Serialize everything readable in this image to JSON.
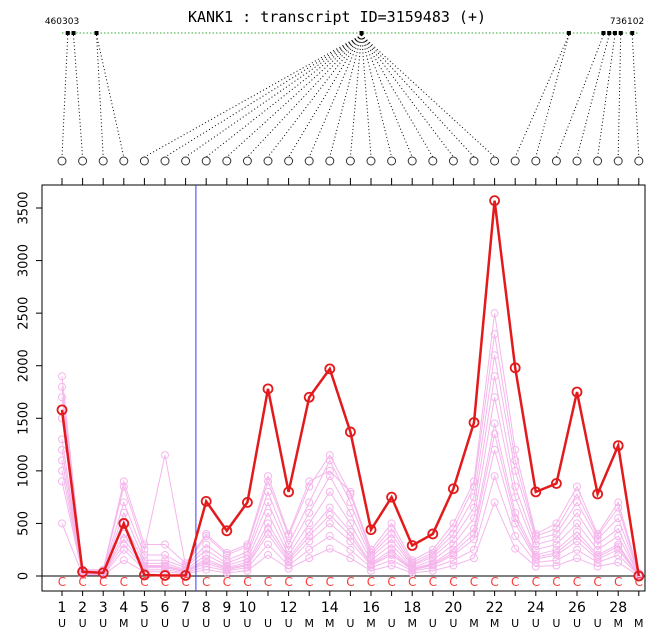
{
  "header": {
    "title": "KANK1 : transcript  ID=3159483 (+)",
    "start_coord": "460303",
    "end_coord": "736102"
  },
  "colors": {
    "highlight": "#e31a1c",
    "background_lines": "#f5b6ec",
    "marker_line": "#3a3aff",
    "genome_line": "#33aa33"
  },
  "chart_data": {
    "type": "line",
    "title": "KANK1 : transcript  ID=3159483 (+)",
    "ylim": [
      -120,
      3650
    ],
    "yticks": [
      0,
      500,
      1000,
      1500,
      2000,
      2500,
      3000,
      3500
    ],
    "x": [
      1,
      2,
      3,
      4,
      5,
      6,
      7,
      8,
      9,
      10,
      11,
      12,
      13,
      14,
      15,
      16,
      17,
      18,
      19,
      20,
      21,
      22,
      23,
      24,
      25,
      26,
      27,
      28,
      29
    ],
    "x_tick_labels": [
      "1",
      "2",
      "3",
      "4",
      "5",
      "6",
      "7",
      "8",
      "9",
      "10",
      "12",
      "14",
      "16",
      "18",
      "20",
      "22",
      "24",
      "26",
      "28"
    ],
    "x_tick_label_positions": [
      1,
      2,
      3,
      4,
      5,
      6,
      7,
      8,
      9,
      10,
      12,
      14,
      16,
      18,
      20,
      22,
      24,
      26,
      28
    ],
    "probe_types": [
      "U",
      "U",
      "U",
      "M",
      "U",
      "U",
      "U",
      "U",
      "U",
      "U",
      "U",
      "U",
      "M",
      "M",
      "U",
      "M",
      "U",
      "M",
      "U",
      "U",
      "M",
      "M",
      "U",
      "U",
      "U",
      "U",
      "U",
      "M",
      "M"
    ],
    "c_labels": [
      "C",
      "C",
      "C",
      "C",
      "C",
      "C",
      "C",
      "C",
      "C",
      "C",
      "C",
      "C",
      "C",
      "C",
      "C",
      "C",
      "C",
      "C",
      "C",
      "C",
      "C",
      "C",
      "C",
      "C",
      "C",
      "C",
      "C",
      "C",
      "C"
    ],
    "exon_genomic_fraction": [
      0.01,
      0.02,
      0.06,
      0.06,
      0.52,
      0.52,
      0.52,
      0.52,
      0.52,
      0.52,
      0.52,
      0.52,
      0.52,
      0.52,
      0.52,
      0.52,
      0.52,
      0.52,
      0.52,
      0.52,
      0.52,
      0.52,
      0.88,
      0.88,
      0.94,
      0.95,
      0.96,
      0.97,
      0.99
    ],
    "vertical_marker_x": 7.5,
    "series": [
      {
        "values": [
          1580,
          40,
          30,
          500,
          10,
          5,
          5,
          710,
          430,
          700,
          1780,
          800,
          1700,
          1970,
          1370,
          440,
          750,
          290,
          400,
          830,
          1460,
          3570,
          1980,
          800,
          880,
          1750,
          780,
          1240,
          0
        ]
      }
    ],
    "background_series": [
      [
        1900,
        60,
        60,
        900,
        300,
        300,
        120,
        400,
        220,
        300,
        950,
        400,
        900,
        1000,
        800,
        250,
        500,
        150,
        250,
        500,
        900,
        2500,
        1200,
        400,
        500,
        850,
        400,
        700,
        30
      ],
      [
        1800,
        50,
        50,
        850,
        250,
        1150,
        100,
        380,
        200,
        280,
        900,
        380,
        850,
        1150,
        780,
        220,
        450,
        130,
        220,
        450,
        850,
        2300,
        1100,
        380,
        450,
        780,
        380,
        650,
        20
      ],
      [
        1700,
        40,
        40,
        700,
        200,
        200,
        90,
        300,
        150,
        230,
        800,
        300,
        700,
        1100,
        700,
        200,
        400,
        110,
        200,
        400,
        750,
        2100,
        1000,
        350,
        400,
        700,
        350,
        550,
        20
      ],
      [
        1500,
        30,
        30,
        600,
        150,
        150,
        80,
        250,
        120,
        200,
        700,
        250,
        600,
        950,
        600,
        180,
        350,
        100,
        180,
        350,
        650,
        1900,
        850,
        300,
        350,
        600,
        300,
        450,
        10
      ],
      [
        1300,
        25,
        25,
        500,
        120,
        120,
        60,
        200,
        100,
        160,
        600,
        200,
        500,
        800,
        500,
        150,
        300,
        80,
        150,
        300,
        550,
        1700,
        750,
        250,
        300,
        500,
        250,
        380,
        10
      ],
      [
        1100,
        20,
        20,
        400,
        100,
        100,
        50,
        160,
        80,
        130,
        500,
        170,
        420,
        650,
        420,
        120,
        250,
        70,
        120,
        250,
        450,
        1450,
        600,
        200,
        250,
        420,
        200,
        300,
        5
      ],
      [
        1000,
        15,
        15,
        300,
        80,
        80,
        40,
        120,
        60,
        100,
        400,
        130,
        330,
        500,
        330,
        100,
        200,
        60,
        100,
        200,
        350,
        1200,
        500,
        160,
        200,
        330,
        160,
        250,
        5
      ],
      [
        900,
        10,
        10,
        250,
        60,
        60,
        30,
        90,
        50,
        80,
        300,
        100,
        250,
        380,
        250,
        80,
        150,
        50,
        80,
        150,
        250,
        950,
        380,
        130,
        150,
        250,
        130,
        200,
        5
      ],
      [
        500,
        10,
        10,
        150,
        40,
        40,
        20,
        60,
        30,
        50,
        200,
        70,
        170,
        260,
        170,
        50,
        100,
        30,
        50,
        100,
        170,
        700,
        260,
        90,
        100,
        170,
        90,
        130,
        0
      ],
      [
        1200,
        20,
        20,
        350,
        90,
        90,
        45,
        140,
        70,
        110,
        450,
        150,
        380,
        580,
        380,
        110,
        220,
        65,
        110,
        220,
        400,
        1350,
        550,
        180,
        220,
        380,
        180,
        280,
        5
      ]
    ]
  }
}
